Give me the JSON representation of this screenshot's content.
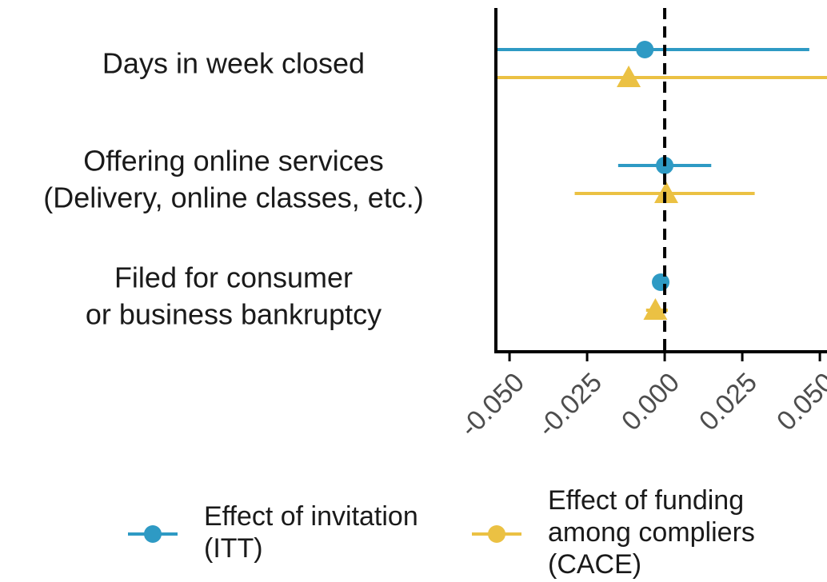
{
  "chart_data": {
    "type": "forest",
    "categories": [
      [
        "Days in week closed"
      ],
      [
        "Offering online services",
        "(Delivery, online classes, etc.)"
      ],
      [
        "Filed for consumer",
        "or business bankruptcy"
      ]
    ],
    "series": [
      {
        "name": [
          "Effect of invitation",
          "(ITT)"
        ],
        "color": "#2e9ac4",
        "marker": "circle",
        "values": [
          -0.0064,
          0.0,
          -0.0013
        ],
        "lower": [
          -0.058,
          -0.015,
          -0.0018
        ],
        "upper": [
          0.0466,
          0.015,
          -0.0008
        ]
      },
      {
        "name": [
          "Effect of funding",
          "among compliers",
          "(CACE)"
        ],
        "color": "#ebc143",
        "marker": "triangle",
        "values": [
          -0.0116,
          0.0005,
          -0.003
        ],
        "lower": [
          -0.065,
          -0.029,
          -0.006
        ],
        "upper": [
          0.07,
          0.029,
          0.001
        ]
      }
    ],
    "xlim": [
      -0.0544,
      0.0523
    ],
    "xticks": [
      {
        "value": -0.05,
        "label": "-0.050"
      },
      {
        "value": -0.025,
        "label": "-0.025"
      },
      {
        "value": 0,
        "label": "0.000"
      },
      {
        "value": 0.025,
        "label": "0.025"
      },
      {
        "value": 0.05,
        "label": "0.050"
      }
    ],
    "reference_line": 0,
    "legend": "bottom"
  }
}
